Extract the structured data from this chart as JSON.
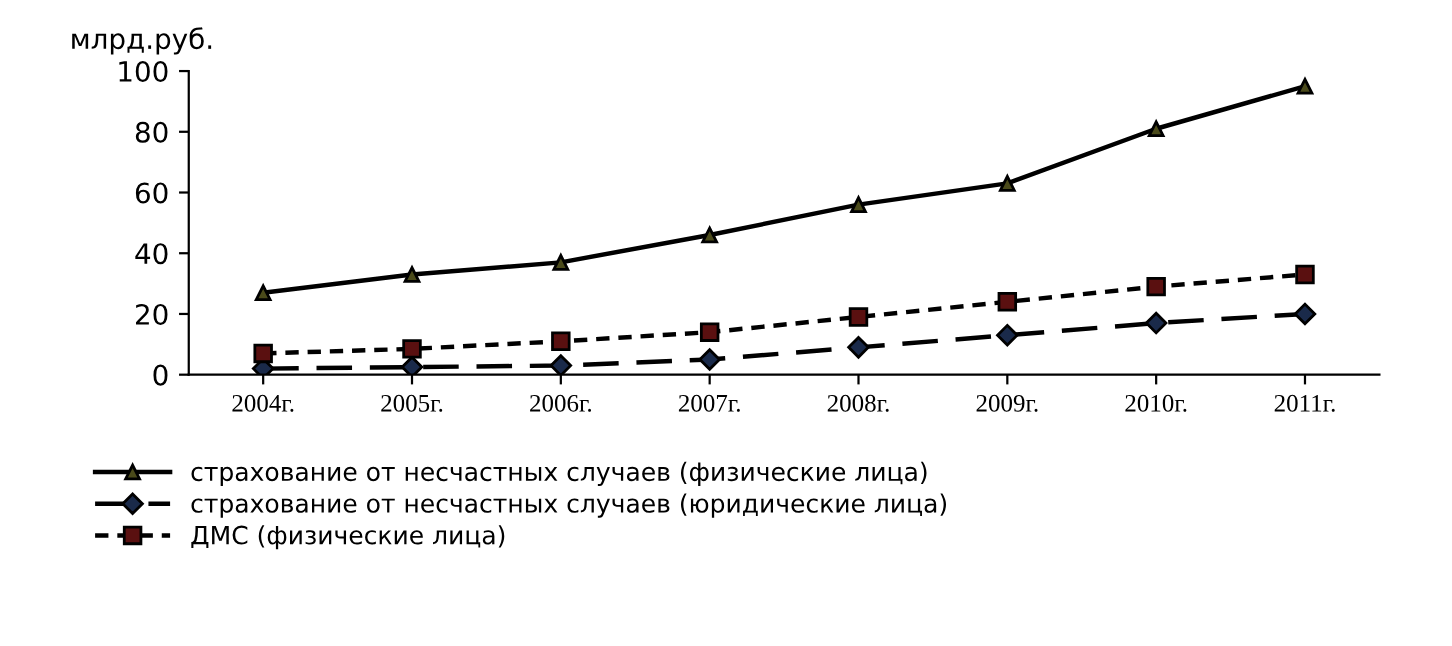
{
  "chart_data": {
    "type": "line",
    "ylabel": "млрд.руб.",
    "categories": [
      "2004г.",
      "2005г.",
      "2006г.",
      "2007г.",
      "2008г.",
      "2009г.",
      "2010г.",
      "2011г."
    ],
    "series": [
      {
        "name": "страхование от несчастных случаев (физические лица)",
        "color": "#000000",
        "marker": "triangle",
        "line_style": "solid",
        "values": [
          27,
          33,
          37,
          46,
          56,
          63,
          81,
          95
        ]
      },
      {
        "name": "страхование от несчастных случаев (юридические лица)",
        "color": "#000000",
        "marker": "diamond",
        "line_style": "dashed",
        "values": [
          2,
          2.5,
          3,
          5,
          9,
          13,
          17,
          20
        ]
      },
      {
        "name": "ДМС (физические лица)",
        "color": "#000000",
        "marker": "square",
        "line_style": "dotted",
        "values": [
          7,
          8.5,
          11,
          14,
          19,
          24,
          29,
          33
        ]
      }
    ],
    "ylim": [
      0,
      100
    ],
    "yticks": [
      0,
      20,
      40,
      60,
      80,
      100
    ],
    "grid": false,
    "legend": "bottom"
  }
}
